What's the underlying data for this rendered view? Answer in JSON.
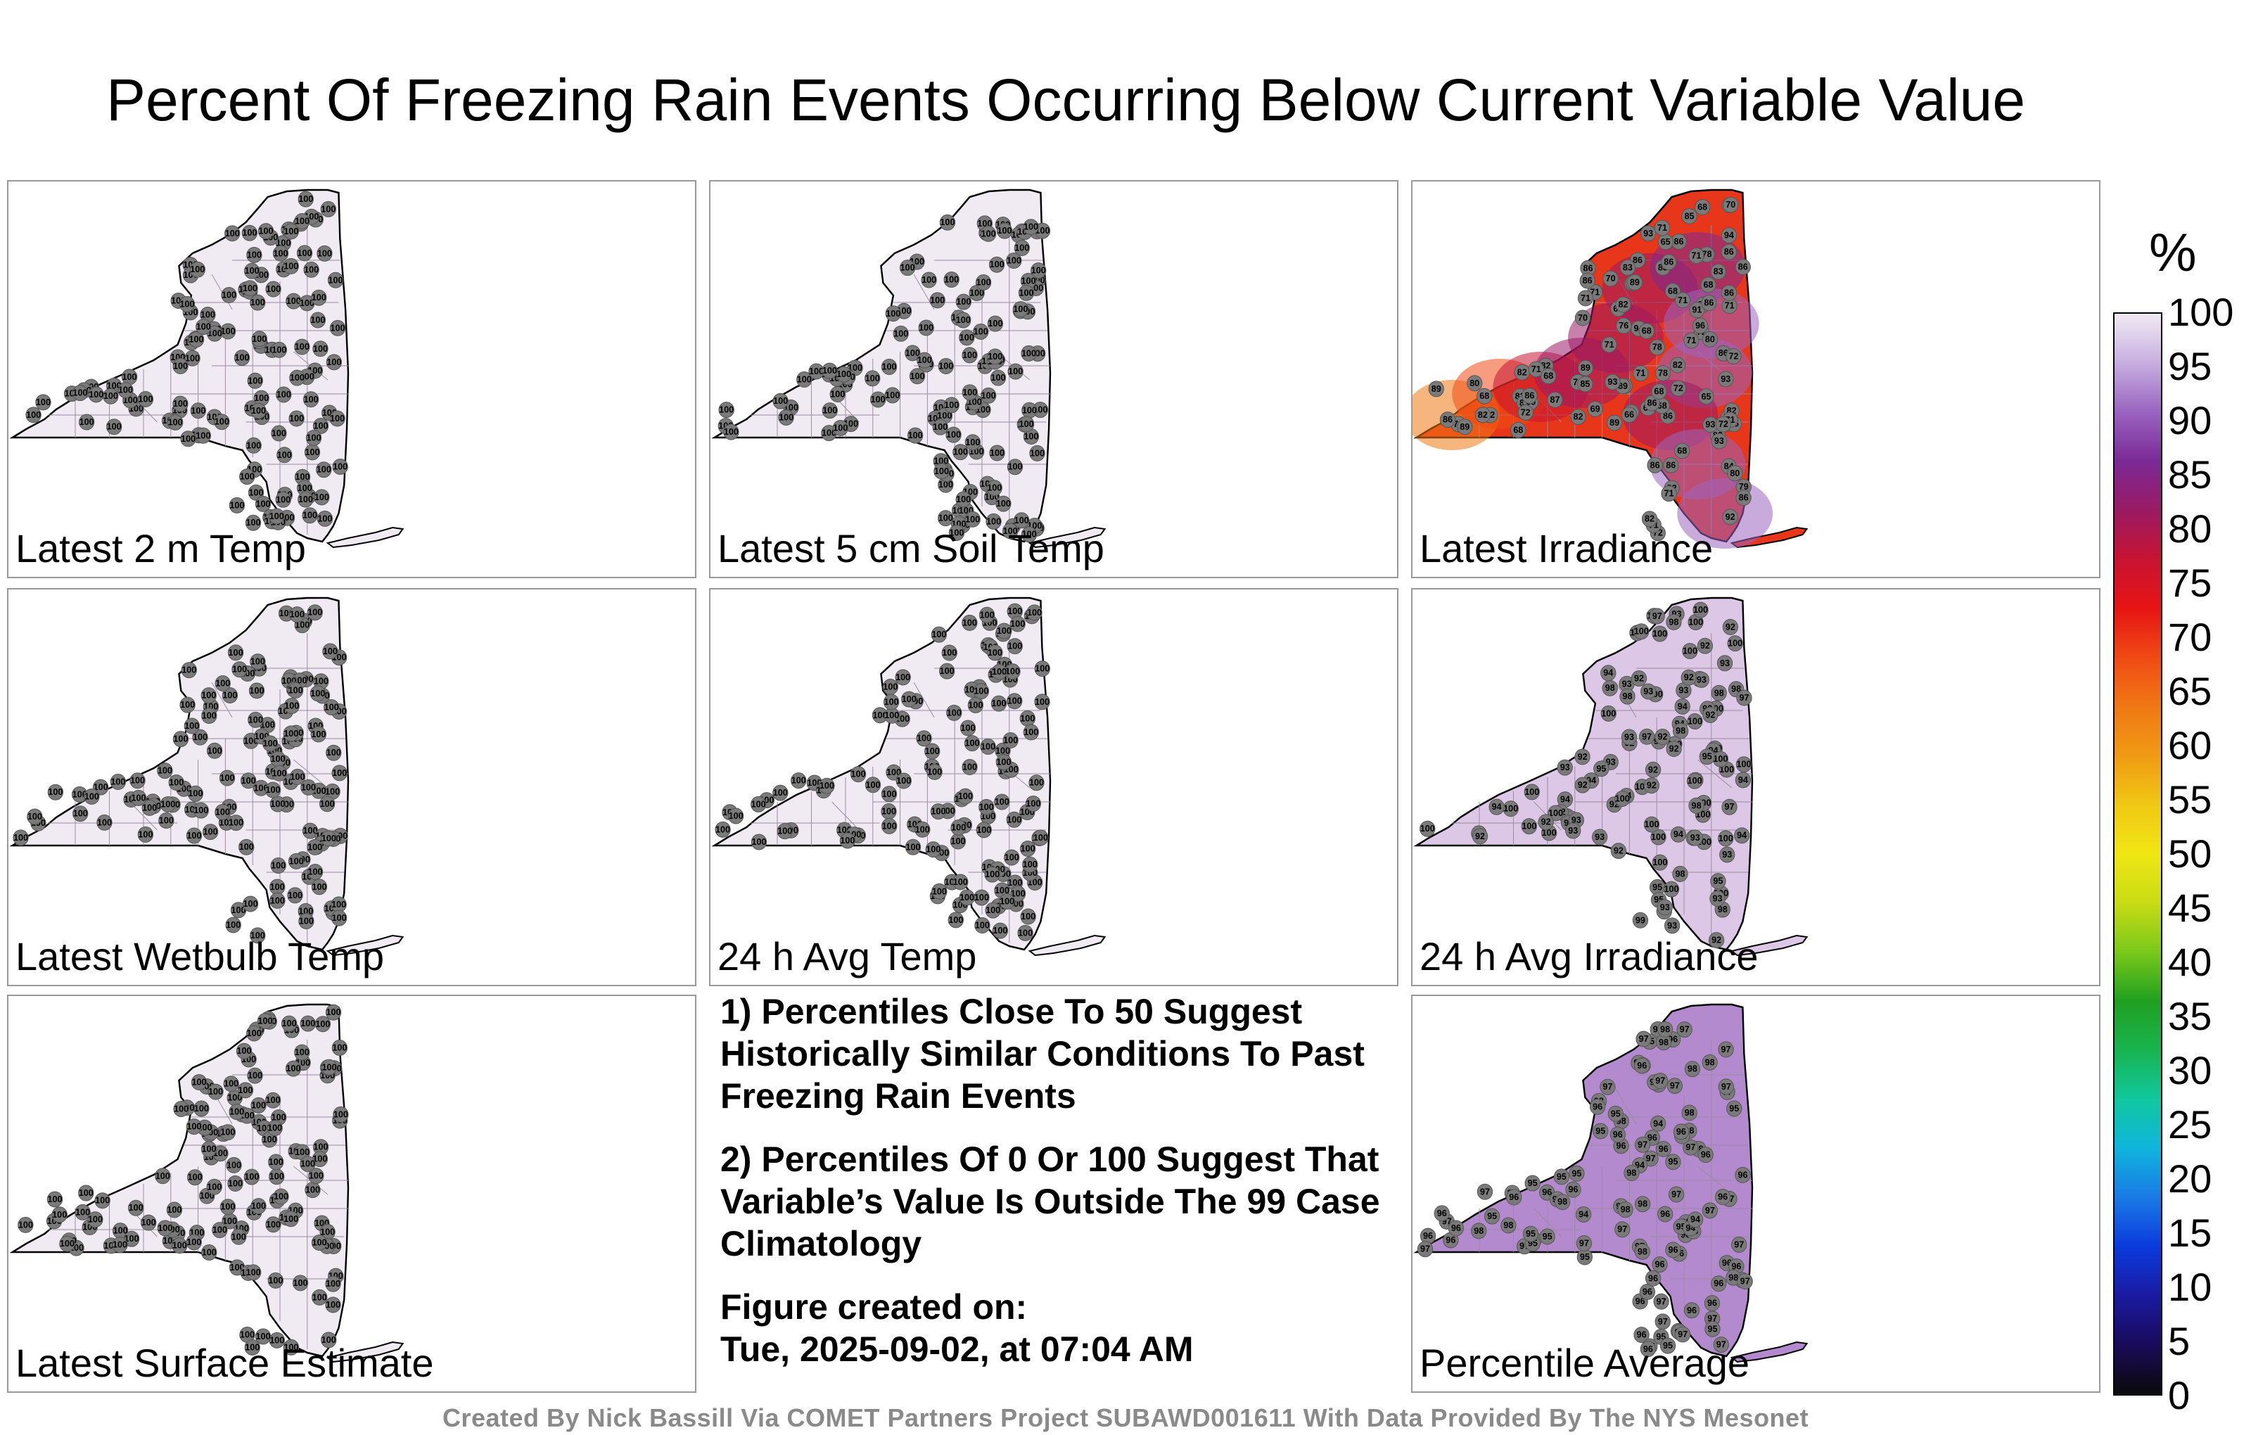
{
  "title": "Percent Of Freezing Rain Events Occurring Below Current Variable Value",
  "panels": [
    {
      "label": "Latest 2 m Temp",
      "fill": "#f0eaf3",
      "values": [
        100,
        100,
        100,
        100,
        100,
        100,
        100,
        100,
        100,
        100,
        100,
        100,
        100,
        100,
        100,
        100,
        100,
        100,
        100,
        100,
        100,
        100,
        100,
        100,
        100,
        100,
        100,
        100,
        100,
        100,
        100,
        100,
        100,
        100,
        100,
        100,
        100,
        100,
        100,
        100,
        100,
        100,
        100,
        100,
        100,
        100,
        100,
        100,
        100,
        100,
        100,
        100,
        100,
        100,
        100,
        100,
        100,
        100,
        100,
        100,
        100,
        100,
        100,
        100,
        100,
        100,
        100,
        100,
        100,
        100,
        100,
        100,
        100,
        100,
        100,
        100,
        100,
        100,
        100,
        100,
        100,
        100,
        100,
        100,
        100,
        100,
        100,
        100,
        100,
        100,
        100,
        100,
        100,
        100,
        100,
        100,
        100,
        100,
        100,
        100,
        100,
        100,
        100,
        100,
        100,
        100,
        100,
        100,
        100,
        100,
        100,
        100,
        100,
        100,
        100,
        100,
        100,
        100,
        100,
        100,
        100,
        100,
        100,
        100,
        100,
        100,
        100
      ]
    },
    {
      "label": "Latest 5 cm Soil Temp",
      "fill": "#f0eaf3",
      "values": [
        100,
        100,
        100,
        100,
        100,
        100,
        100,
        100,
        100,
        100,
        100,
        100,
        100,
        100,
        100,
        100,
        100,
        100,
        100,
        100,
        100,
        100,
        100,
        100,
        100,
        100,
        100,
        100,
        100,
        100,
        100,
        100,
        100,
        100,
        100,
        100,
        100,
        100,
        100,
        100,
        100,
        100,
        100,
        100,
        100,
        100,
        100,
        100,
        100,
        100,
        100,
        100,
        100,
        100,
        100,
        100,
        100,
        100,
        100,
        100,
        100,
        100,
        100,
        100,
        100,
        100,
        100,
        100,
        100,
        100,
        100,
        100,
        100,
        100,
        100,
        100,
        100,
        100,
        100,
        100,
        100,
        100,
        100,
        100,
        100,
        100,
        100,
        100,
        100,
        100,
        100,
        100,
        100,
        100,
        100,
        100,
        100,
        100,
        100,
        100,
        100,
        100,
        100,
        100,
        100,
        100,
        100,
        100,
        100,
        100,
        100,
        100,
        100,
        100,
        100,
        100,
        100,
        100,
        100,
        100,
        100,
        100,
        100,
        100,
        100,
        100,
        100
      ]
    },
    {
      "label": "Latest Irradiance",
      "fill": "#e8361a",
      "values": [
        86,
        86,
        86,
        82,
        76,
        82,
        79,
        79,
        86,
        86,
        80,
        86,
        86,
        78,
        72,
        69,
        80,
        82,
        83,
        91,
        82,
        80,
        71,
        72,
        84,
        80,
        86,
        71,
        71,
        68,
        82,
        72,
        93,
        86,
        71,
        87,
        78,
        82,
        71,
        72,
        85,
        86,
        79,
        68,
        65,
        68,
        86,
        71,
        83,
        86,
        92,
        93,
        82,
        93,
        68,
        65,
        82,
        82,
        83,
        86,
        66,
        72,
        68,
        89,
        86,
        94,
        70,
        93,
        68,
        71,
        78,
        69,
        68,
        68,
        70,
        70,
        71,
        82,
        89,
        93,
        92,
        65,
        68,
        71,
        65,
        86,
        71,
        70,
        65,
        71,
        68,
        85,
        69,
        89,
        89,
        71,
        72,
        94,
        71,
        86,
        72,
        68,
        82,
        68,
        86,
        89,
        86,
        71,
        96,
        86,
        89
      ]
    },
    {
      "label": "Latest Wetbulb Temp",
      "fill": "#f0eaf3",
      "values": [
        100,
        100,
        100,
        100,
        100,
        100,
        100,
        100,
        100,
        100,
        100,
        100,
        100,
        100,
        100,
        100,
        100,
        100,
        100,
        100,
        100,
        100,
        100,
        100,
        100,
        100,
        100,
        100,
        100,
        100,
        100,
        100,
        100,
        100,
        100,
        100,
        100,
        100,
        100,
        100,
        100,
        100,
        100,
        100,
        100,
        100,
        100,
        100,
        100,
        100,
        100,
        100,
        100,
        100,
        100,
        100,
        100,
        100,
        100,
        100,
        100,
        100,
        100,
        100,
        100,
        100,
        100,
        100,
        100,
        100,
        100,
        100,
        100,
        100,
        100,
        100,
        100,
        100,
        100,
        100,
        100,
        100,
        100,
        100,
        100,
        100,
        100,
        100,
        100,
        100,
        100,
        100,
        100,
        100,
        100,
        100,
        100,
        100,
        100,
        100,
        100,
        100,
        100,
        100,
        100,
        100,
        100,
        100,
        100,
        100,
        100,
        100,
        100,
        100,
        100,
        100,
        100,
        100,
        100,
        100,
        100,
        100,
        100,
        100,
        100,
        100,
        100
      ]
    },
    {
      "label": "24 h Avg Temp",
      "fill": "#f0eaf3",
      "values": [
        100,
        100,
        100,
        100,
        100,
        100,
        100,
        100,
        100,
        100,
        100,
        100,
        100,
        100,
        100,
        100,
        100,
        100,
        100,
        100,
        100,
        100,
        100,
        100,
        100,
        100,
        100,
        100,
        100,
        100,
        100,
        100,
        100,
        100,
        100,
        100,
        100,
        100,
        100,
        100,
        100,
        100,
        100,
        100,
        100,
        100,
        100,
        100,
        100,
        100,
        100,
        100,
        100,
        100,
        100,
        100,
        100,
        100,
        100,
        100,
        100,
        100,
        100,
        100,
        100,
        100,
        100,
        100,
        100,
        100,
        100,
        100,
        100,
        100,
        100,
        100,
        100,
        100,
        100,
        100,
        100,
        100,
        100,
        100,
        100,
        100,
        100,
        100,
        100,
        100,
        100,
        100,
        100,
        100,
        100,
        100,
        100,
        100,
        100,
        100,
        100,
        100,
        100,
        100,
        100,
        100,
        100,
        100,
        100,
        100,
        100,
        100,
        100,
        100,
        100,
        100,
        100,
        100,
        100,
        100,
        100,
        100,
        100,
        100,
        100,
        100,
        100
      ]
    },
    {
      "label": "24 h Avg Irradiance",
      "fill": "#dcc8e6",
      "values": [
        100,
        100,
        98,
        100,
        100,
        100,
        94,
        100,
        100,
        98,
        98,
        98,
        94,
        94,
        94,
        95,
        98,
        92,
        93,
        93,
        93,
        94,
        100,
        95,
        93,
        95,
        94,
        92,
        93,
        93,
        98,
        100,
        93,
        93,
        98,
        100,
        92,
        92,
        93,
        100,
        100,
        98,
        100,
        94,
        92,
        92,
        92,
        100,
        100,
        94,
        92,
        93,
        100,
        100,
        93,
        93,
        92,
        100,
        100,
        98,
        100,
        93,
        94,
        92,
        93,
        100,
        100,
        97,
        94,
        93,
        92,
        100,
        100,
        100,
        100,
        100,
        97,
        93,
        92,
        99,
        100,
        100,
        100,
        100,
        92,
        100,
        94,
        92,
        92,
        98,
        93,
        95,
        92,
        97,
        100,
        97,
        100,
        94,
        92,
        100,
        95,
        95,
        92,
        92,
        92,
        92,
        93,
        93,
        92,
        93
      ]
    },
    {
      "label": "Latest Surface Estimate",
      "fill": "#f0eaf3",
      "values": [
        100,
        100,
        100,
        100,
        100,
        100,
        100,
        100,
        100,
        100,
        100,
        100,
        100,
        100,
        100,
        100,
        100,
        100,
        100,
        100,
        100,
        100,
        100,
        100,
        100,
        100,
        100,
        100,
        100,
        100,
        100,
        100,
        100,
        100,
        100,
        100,
        100,
        100,
        100,
        100,
        100,
        100,
        100,
        100,
        100,
        100,
        100,
        100,
        100,
        100,
        100,
        100,
        100,
        100,
        100,
        100,
        100,
        100,
        100,
        100,
        100,
        100,
        100,
        100,
        100,
        100,
        100,
        100,
        100,
        100,
        100,
        100,
        100,
        100,
        100,
        100,
        100,
        100,
        100,
        100,
        100,
        100,
        100,
        100,
        100,
        100,
        100,
        100,
        100,
        100,
        100,
        100,
        100,
        100,
        100,
        100,
        100,
        100,
        100,
        100,
        100,
        100,
        100,
        100,
        100,
        100,
        100,
        100,
        100,
        100,
        100,
        100,
        100,
        100,
        100,
        100,
        100,
        100,
        100,
        100,
        100,
        100,
        100,
        100,
        100,
        100,
        100
      ]
    },
    {
      "label": "Percentile Average",
      "fill": "#b48ace",
      "values": [
        98,
        98,
        97,
        97,
        97,
        98,
        98,
        97,
        97,
        96,
        96,
        97,
        98,
        97,
        96,
        97,
        97,
        96,
        95,
        96,
        98,
        97,
        96,
        97,
        96,
        96,
        96,
        96,
        96,
        97,
        97,
        98,
        98,
        97,
        96,
        96,
        96,
        97,
        96,
        94,
        97,
        97,
        97,
        98,
        96,
        96,
        94,
        95,
        96,
        95,
        96,
        96,
        98,
        95,
        97,
        95,
        95,
        96,
        98,
        97,
        96,
        98,
        96,
        97,
        95,
        96,
        95,
        98,
        96,
        94,
        95,
        96,
        96,
        96,
        94,
        95,
        96,
        98,
        97,
        95,
        98,
        96,
        96,
        97,
        95,
        95,
        96,
        96,
        97,
        96,
        95,
        97,
        95,
        96,
        97,
        95,
        94,
        96,
        98,
        98,
        98,
        97,
        97,
        97,
        96,
        95,
        95,
        97,
        98,
        96,
        94,
        95,
        98,
        97,
        97,
        97,
        95
      ]
    }
  ],
  "notes": [
    "1) Percentiles Close To 50 Suggest Historically Similar Conditions To Past Freezing Rain Events",
    "2) Percentiles Of 0 Or 100 Suggest That Variable’s Value Is Outside The 99 Case Climatology"
  ],
  "figure_created_label": "Figure created on:",
  "figure_created_date": "Tue, 2025-09-02, at 07:04 AM",
  "colorbar": {
    "unit": "%",
    "ticks": [
      "100",
      "95",
      "90",
      "85",
      "80",
      "75",
      "70",
      "65",
      "60",
      "55",
      "50",
      "45",
      "40",
      "35",
      "30",
      "25",
      "20",
      "15",
      "10",
      "5",
      "0"
    ],
    "colors": [
      "#0a0a0a",
      "#1a0a5a",
      "#1a1aa0",
      "#0a3adc",
      "#1a7ae6",
      "#10b4dc",
      "#10c8a0",
      "#18b450",
      "#20a020",
      "#7ac81a",
      "#c8dc14",
      "#f0e614",
      "#f0c814",
      "#f09a14",
      "#f07814",
      "#f04a14",
      "#e61414",
      "#c81432",
      "#9a1a64",
      "#7a2a96",
      "#9a64c0",
      "#c8aee0",
      "#f0eaf3"
    ]
  },
  "credit": "Created By Nick Bassill Via COMET Partners Project SUBAWD001611 With Data Provided By The NYS Mesonet"
}
